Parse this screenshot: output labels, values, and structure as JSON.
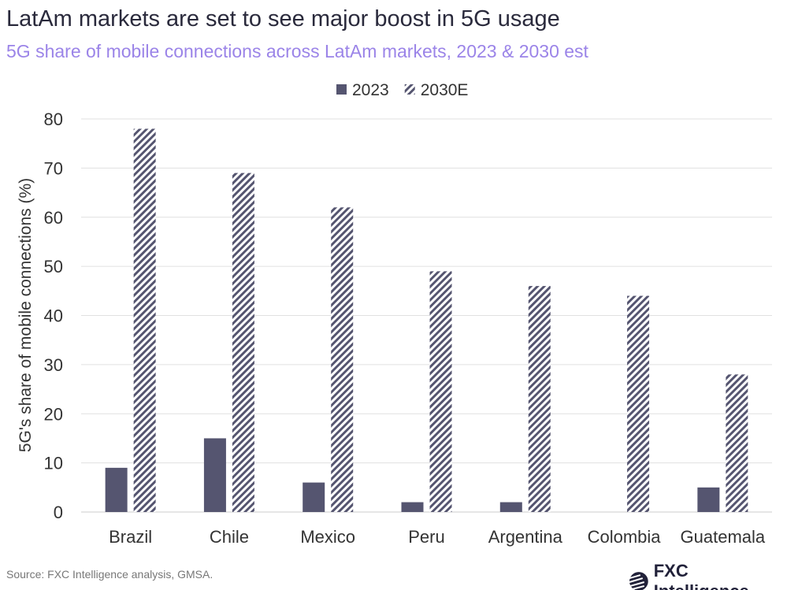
{
  "title": "LatAm markets are set to see major boost in 5G usage",
  "subtitle": "5G share of mobile connections across LatAm markets, 2023 & 2030 est",
  "source": "Source: FXC Intelligence analysis, GMSA.",
  "logo": "FXC Intelligence",
  "colors": {
    "bar": "#555570",
    "grid": "#e0e0e0",
    "subtitle": "#9b84e8"
  },
  "chart_data": {
    "type": "bar",
    "title": "LatAm markets are set to see major boost in 5G usage",
    "ylabel": "5G's share of mobile connections (%)",
    "xlabel": "",
    "ylim": [
      0,
      80
    ],
    "yticks": [
      0,
      10,
      20,
      30,
      40,
      50,
      60,
      70,
      80
    ],
    "grid": true,
    "legend": "top-center",
    "categories": [
      "Brazil",
      "Chile",
      "Mexico",
      "Peru",
      "Argentina",
      "Colombia",
      "Guatemala"
    ],
    "series": [
      {
        "name": "2023",
        "style": "solid",
        "values": [
          9,
          15,
          6,
          2,
          2,
          0,
          5
        ]
      },
      {
        "name": "2030E",
        "style": "hatched",
        "values": [
          78,
          69,
          62,
          49,
          46,
          44,
          28
        ]
      }
    ]
  }
}
